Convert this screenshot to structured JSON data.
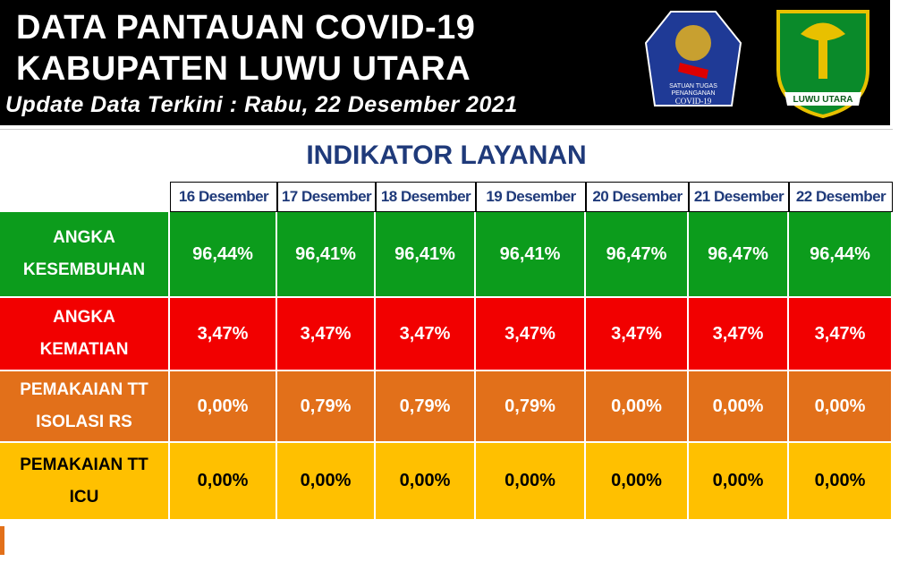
{
  "header": {
    "title_line1": "DATA PANTAUAN COVID-19",
    "title_line2": "KABUPATEN LUWU UTARA",
    "subtitle": "Update Data Terkini : Rabu, 22 Desember 2021",
    "logo1_text": [
      "SATUAN TUGAS",
      "PENANGANAN",
      "COVID-19"
    ],
    "logo2_text": "LUWU UTARA"
  },
  "table": {
    "title": "INDIKATOR LAYANAN",
    "columns": [
      "16 Desember",
      "17 Desember",
      "18 Desember",
      "19 Desember",
      "20 Desember",
      "21 Desember",
      "22 Desember"
    ],
    "rows": [
      {
        "label": [
          "ANGKA",
          "KESEMBUHAN"
        ],
        "color": "#0c9c1c",
        "text_color": "#ffffff",
        "values": [
          "96,44%",
          "96,41%",
          "96,41%",
          "96,41%",
          "96,47%",
          "96,47%",
          "96,44%"
        ]
      },
      {
        "label": [
          "ANGKA",
          "KEMATIAN"
        ],
        "color": "#f20000",
        "text_color": "#ffffff",
        "values": [
          "3,47%",
          "3,47%",
          "3,47%",
          "3,47%",
          "3,47%",
          "3,47%",
          "3,47%"
        ]
      },
      {
        "label": [
          "PEMAKAIAN TT",
          "ISOLASI RS"
        ],
        "color": "#e2701a",
        "text_color": "#ffffff",
        "values": [
          "0,00%",
          "0,79%",
          "0,79%",
          "0,79%",
          "0,00%",
          "0,00%",
          "0,00%"
        ]
      },
      {
        "label": [
          "PEMAKAIAN TT",
          "ICU"
        ],
        "color": "#ffc000",
        "text_color": "#000000",
        "values": [
          "0,00%",
          "0,00%",
          "0,00%",
          "0,00%",
          "0,00%",
          "0,00%",
          "0,00%"
        ]
      }
    ]
  }
}
